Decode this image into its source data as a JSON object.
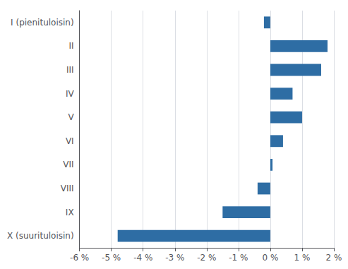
{
  "chart_data": {
    "type": "bar",
    "orientation": "horizontal",
    "categories": [
      "I (pienituloisin)",
      "II",
      "III",
      "IV",
      "V",
      "VI",
      "VII",
      "VIII",
      "IX",
      "X (suurituloisin)"
    ],
    "values": [
      -0.2,
      1.8,
      1.6,
      0.7,
      1.0,
      0.4,
      0.07,
      -0.4,
      -1.5,
      -4.8
    ],
    "color": "#2E6DA4",
    "xlim": [
      -6,
      2
    ],
    "xticks": [
      {
        "value": -6,
        "label": "-6 %"
      },
      {
        "value": -5,
        "label": "-5 %"
      },
      {
        "value": -4,
        "label": "-4 %"
      },
      {
        "value": -3,
        "label": "-3 %"
      },
      {
        "value": -2,
        "label": "-2 %"
      },
      {
        "value": -1,
        "label": "-1 %"
      },
      {
        "value": 0,
        "label": "0 %"
      },
      {
        "value": 1,
        "label": "1 %"
      },
      {
        "value": 2,
        "label": "2 %"
      }
    ],
    "grid": true
  }
}
